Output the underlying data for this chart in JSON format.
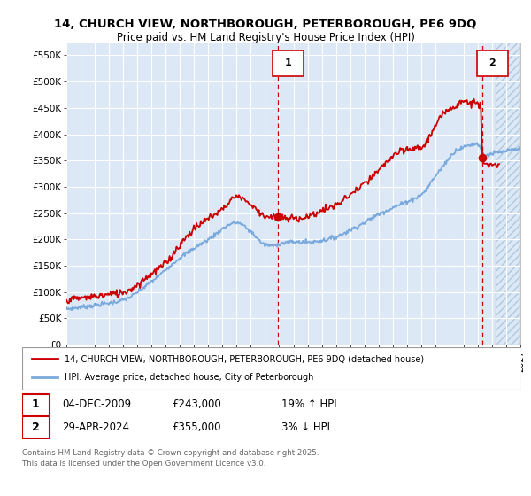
{
  "title_line1": "14, CHURCH VIEW, NORTHBOROUGH, PETERBOROUGH, PE6 9DQ",
  "title_line2": "Price paid vs. HM Land Registry's House Price Index (HPI)",
  "ylim": [
    0,
    575000
  ],
  "xlim_start": 1995.0,
  "xlim_end": 2027.0,
  "yticks": [
    0,
    50000,
    100000,
    150000,
    200000,
    250000,
    300000,
    350000,
    400000,
    450000,
    500000,
    550000
  ],
  "ytick_labels": [
    "£0",
    "£50K",
    "£100K",
    "£150K",
    "£200K",
    "£250K",
    "£300K",
    "£350K",
    "£400K",
    "£450K",
    "£500K",
    "£550K"
  ],
  "red_color": "#cc0000",
  "blue_color": "#7aaadd",
  "vline1_x": 2009.92,
  "vline2_x": 2024.33,
  "marker1_x": 2009.92,
  "marker1_y": 243000,
  "marker2_x": 2024.33,
  "marker2_y": 355000,
  "legend_label_red": "14, CHURCH VIEW, NORTHBOROUGH, PETERBOROUGH, PE6 9DQ (detached house)",
  "legend_label_blue": "HPI: Average price, detached house, City of Peterborough",
  "annot1_num": "1",
  "annot2_num": "2",
  "annot1_date": "04-DEC-2009",
  "annot1_price": "£243,000",
  "annot1_hpi": "19% ↑ HPI",
  "annot2_date": "29-APR-2024",
  "annot2_price": "£355,000",
  "annot2_hpi": "3% ↓ HPI",
  "footer": "Contains HM Land Registry data © Crown copyright and database right 2025.\nThis data is licensed under the Open Government Licence v3.0.",
  "bg_color": "#ffffff",
  "plot_bg_color": "#dce8f5",
  "grid_color": "#ffffff",
  "hatch_start": 2025.25
}
